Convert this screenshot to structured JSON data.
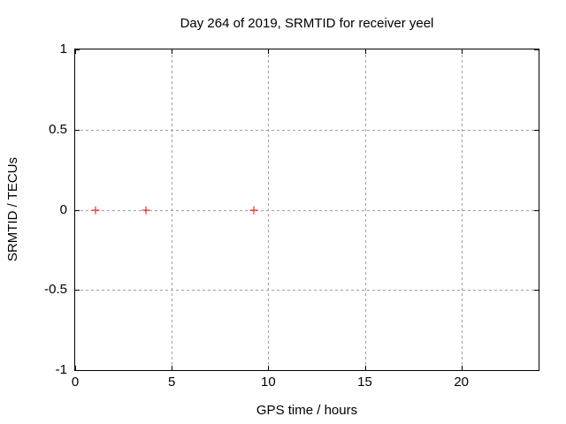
{
  "chart_data": {
    "type": "scatter",
    "title": "Day 264 of 2019, SRMTID for receiver yeel",
    "xlabel": "GPS time / hours",
    "ylabel": "SRMTID / TECUs",
    "xlim": [
      0,
      24
    ],
    "ylim": [
      -1,
      1
    ],
    "grid": true,
    "legend": "none",
    "xticks": [
      {
        "value": 0,
        "label": "0"
      },
      {
        "value": 5,
        "label": "5"
      },
      {
        "value": 10,
        "label": "10"
      },
      {
        "value": 15,
        "label": "15"
      },
      {
        "value": 20,
        "label": "20"
      }
    ],
    "yticks": [
      {
        "value": -1,
        "label": "-1"
      },
      {
        "value": -0.5,
        "label": "-0.5"
      },
      {
        "value": 0,
        "label": "0"
      },
      {
        "value": 0.5,
        "label": "0.5"
      },
      {
        "value": 1,
        "label": "1"
      }
    ],
    "series": [
      {
        "name": "SRMTID",
        "marker": "plus",
        "color": "#ff0000",
        "points": [
          {
            "x": 1.07,
            "y": 0.0
          },
          {
            "x": 3.66,
            "y": 0.0
          },
          {
            "x": 9.27,
            "y": 0.0
          }
        ]
      }
    ],
    "colors": {
      "axis": "#000000",
      "grid": "#a0a0a0",
      "background": "#ffffff"
    }
  }
}
